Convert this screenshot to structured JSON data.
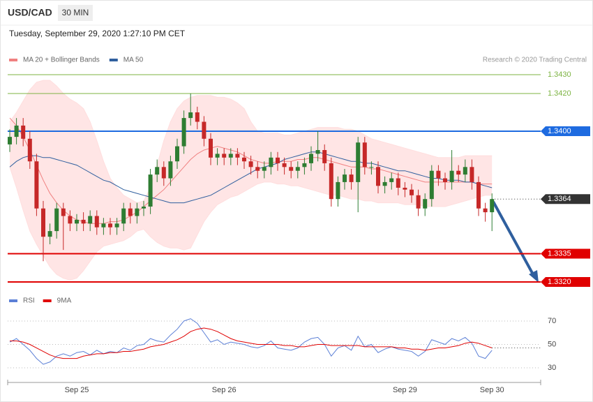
{
  "chart_data": [
    {
      "type": "candlestick",
      "title": "USD/CAD",
      "timeframe": "30 MIN",
      "subtitle": "Tuesday, September 29, 2020 1:27:10 PM CET",
      "source": "Research © 2020 Trading Central",
      "up_color": "#2e7d32",
      "down_color": "#c62828",
      "categories": [
        null,
        null,
        null,
        null,
        null,
        null,
        null,
        null,
        null,
        null,
        "Sep 25",
        null,
        null,
        null,
        null,
        null,
        null,
        null,
        null,
        null,
        null,
        null,
        null,
        null,
        null,
        null,
        null,
        null,
        null,
        null,
        null,
        null,
        "Sep 26",
        null,
        null,
        null,
        null,
        null,
        null,
        null,
        null,
        null,
        null,
        null,
        null,
        null,
        null,
        null,
        null,
        null,
        null,
        null,
        null,
        null,
        null,
        null,
        null,
        null,
        null,
        "Sep 29",
        null,
        null,
        null,
        null,
        null,
        null,
        null,
        null,
        null,
        null,
        null,
        null,
        "Sep 30"
      ],
      "open": [
        1.3393,
        1.3397,
        1.3403,
        1.3396,
        1.3384,
        1.3359,
        1.3344,
        1.3347,
        1.3359,
        1.3355,
        1.3351,
        1.3353,
        1.3351,
        1.3355,
        1.3349,
        1.3351,
        1.3349,
        1.3351,
        1.3359,
        1.3355,
        1.3359,
        1.336,
        1.3377,
        1.3381,
        1.3375,
        1.3384,
        1.3392,
        1.3407,
        1.341,
        1.3405,
        1.3396,
        1.3386,
        1.3388,
        1.3386,
        1.3388,
        1.3386,
        1.3384,
        1.3381,
        1.3379,
        1.3381,
        1.3386,
        1.3383,
        1.3381,
        1.3379,
        1.3381,
        1.3383,
        1.3388,
        1.339,
        1.3383,
        1.3364,
        1.3373,
        1.3377,
        1.3373,
        1.3394,
        1.3381,
        1.3381,
        1.3371,
        1.3373,
        1.3375,
        1.337,
        1.3369,
        1.3366,
        1.3359,
        1.3364,
        1.3379,
        1.3375,
        1.3373,
        1.3379,
        1.3377,
        1.3381,
        1.3373,
        1.3359,
        1.3357
      ],
      "high": [
        1.3401,
        1.3407,
        1.3407,
        1.34,
        1.3388,
        1.3363,
        1.3351,
        1.3362,
        1.3362,
        1.3358,
        1.3356,
        1.3357,
        1.3358,
        1.3358,
        1.3354,
        1.3354,
        1.3354,
        1.3362,
        1.3362,
        1.3362,
        1.3363,
        1.338,
        1.3385,
        1.3384,
        1.3387,
        1.3396,
        1.3411,
        1.342,
        1.3413,
        1.3408,
        1.3399,
        1.3391,
        1.3391,
        1.3391,
        1.3391,
        1.3389,
        1.3387,
        1.3384,
        1.3384,
        1.3389,
        1.3389,
        1.3386,
        1.3384,
        1.3384,
        1.3386,
        1.3392,
        1.34,
        1.3393,
        1.3386,
        1.3376,
        1.338,
        1.338,
        1.3397,
        1.3397,
        1.3384,
        1.3384,
        1.3376,
        1.3378,
        1.3378,
        1.3373,
        1.3372,
        1.3369,
        1.3367,
        1.3382,
        1.3382,
        1.3378,
        1.339,
        1.3382,
        1.3385,
        1.3385,
        1.3376,
        1.3362,
        1.3367
      ],
      "low": [
        1.3389,
        1.3393,
        1.3392,
        1.338,
        1.3355,
        1.3331,
        1.334,
        1.3343,
        1.3337,
        1.3347,
        1.3347,
        1.3347,
        1.3347,
        1.3345,
        1.3345,
        1.3345,
        1.3345,
        1.3347,
        1.3351,
        1.3351,
        1.3355,
        1.3356,
        1.3373,
        1.3371,
        1.3371,
        1.338,
        1.3388,
        1.3403,
        1.3401,
        1.3392,
        1.3382,
        1.3382,
        1.3382,
        1.3382,
        1.3382,
        1.338,
        1.3377,
        1.3375,
        1.3375,
        1.3377,
        1.3379,
        1.3377,
        1.3375,
        1.3375,
        1.3377,
        1.3379,
        1.3384,
        1.3379,
        1.336,
        1.336,
        1.3369,
        1.3369,
        1.3357,
        1.3377,
        1.3377,
        1.3367,
        1.3367,
        1.3369,
        1.3366,
        1.3365,
        1.3362,
        1.3355,
        1.3355,
        1.336,
        1.3371,
        1.3369,
        1.3369,
        1.3373,
        1.3373,
        1.3369,
        1.3355,
        1.3352,
        1.3347
      ],
      "close": [
        1.3397,
        1.3403,
        1.3396,
        1.3384,
        1.3359,
        1.3344,
        1.3347,
        1.3359,
        1.3355,
        1.3351,
        1.3353,
        1.3351,
        1.3355,
        1.3349,
        1.3351,
        1.3349,
        1.3351,
        1.3359,
        1.3355,
        1.3359,
        1.336,
        1.3377,
        1.3381,
        1.3375,
        1.3384,
        1.3392,
        1.3407,
        1.341,
        1.3405,
        1.3396,
        1.3386,
        1.3388,
        1.3386,
        1.3388,
        1.3386,
        1.3384,
        1.3381,
        1.3379,
        1.3381,
        1.3386,
        1.3383,
        1.3381,
        1.3379,
        1.3381,
        1.3383,
        1.3388,
        1.339,
        1.3383,
        1.3364,
        1.3373,
        1.3377,
        1.3373,
        1.3394,
        1.3381,
        1.3381,
        1.3371,
        1.3373,
        1.3375,
        1.337,
        1.3369,
        1.3366,
        1.3359,
        1.3364,
        1.3379,
        1.3375,
        1.3373,
        1.3379,
        1.3377,
        1.3381,
        1.3373,
        1.3359,
        1.3357,
        1.3364
      ],
      "overlays": [
        {
          "name": "MA 20 + Bollinger Bands",
          "color": "#f08080",
          "band_color": "#ffdede",
          "values": [
            1.3407,
            1.3403,
            1.3397,
            1.339,
            1.3382,
            1.3374,
            1.3367,
            1.3362,
            1.3358,
            1.3355,
            1.3353,
            1.3352,
            1.3351,
            1.3351,
            1.3351,
            1.3352,
            1.3352,
            1.3353,
            1.3355,
            1.3357,
            1.336,
            1.3363,
            1.3366,
            1.3369,
            1.3373,
            1.3377,
            1.3381,
            1.3385,
            1.3388,
            1.339,
            1.3391,
            1.3392,
            1.3391,
            1.339,
            1.3389,
            1.3387,
            1.3385,
            1.3384,
            1.3383,
            1.3383,
            1.3384,
            1.3384,
            1.3384,
            1.3385,
            1.3385,
            1.3386,
            1.3386,
            1.3385,
            1.3384,
            1.3383,
            1.3382,
            1.3381,
            1.3381,
            1.3381,
            1.338,
            1.338,
            1.3379,
            1.3378,
            1.3377,
            1.3376,
            1.3375,
            1.3374,
            1.3373,
            1.3373,
            1.3373,
            1.3373,
            1.3373,
            1.3373,
            1.3373,
            1.3373,
            1.3372,
            1.3372,
            1.3372
          ],
          "upper": [
            1.3405,
            1.341,
            1.3416,
            1.3422,
            1.3426,
            1.3427,
            1.3427,
            1.3424,
            1.342,
            1.3417,
            1.3415,
            1.3412,
            1.3405,
            1.3395,
            1.3384,
            1.3375,
            1.337,
            1.3366,
            1.3364,
            1.3362,
            1.3363,
            1.337,
            1.3382,
            1.3395,
            1.3405,
            1.3412,
            1.3416,
            1.3418,
            1.3419,
            1.3419,
            1.3419,
            1.3418,
            1.3418,
            1.3417,
            1.3415,
            1.3412,
            1.3405,
            1.34,
            1.3399,
            1.3399,
            1.3399,
            1.3398,
            1.3398,
            1.3399,
            1.34,
            1.3401,
            1.3402,
            1.3402,
            1.3402,
            1.3402,
            1.3401,
            1.3401,
            1.34,
            1.3398,
            1.3396,
            1.3395,
            1.3394,
            1.3393,
            1.3392,
            1.3391,
            1.339,
            1.3389,
            1.3388,
            1.3387,
            1.3386,
            1.3386,
            1.3386,
            1.3386,
            1.3387,
            1.3387,
            1.3387,
            1.3387,
            1.3387
          ],
          "lower": [
            1.3381,
            1.337,
            1.3358,
            1.3347,
            1.334,
            1.3334,
            1.3328,
            1.3324,
            1.3322,
            1.3321,
            1.3322,
            1.3326,
            1.3331,
            1.3336,
            1.3339,
            1.334,
            1.3341,
            1.3342,
            1.3344,
            1.3347,
            1.3348,
            1.3344,
            1.3341,
            1.3339,
            1.3338,
            1.3338,
            1.3337,
            1.3338,
            1.3345,
            1.3352,
            1.3357,
            1.3361,
            1.3363,
            1.3365,
            1.3366,
            1.3368,
            1.337,
            1.3372,
            1.3373,
            1.3373,
            1.3372,
            1.3372,
            1.3371,
            1.3371,
            1.337,
            1.3369,
            1.3368,
            1.3367,
            1.3366,
            1.3366,
            1.3365,
            1.3364,
            1.3364,
            1.3363,
            1.3363,
            1.3362,
            1.3362,
            1.3362,
            1.3362,
            1.3361,
            1.3361,
            1.3361,
            1.336,
            1.336,
            1.336,
            1.336,
            1.3361,
            1.3362,
            1.3363,
            1.3364,
            1.3365,
            1.3366,
            1.3366
          ]
        },
        {
          "name": "MA 50",
          "color": "#2f5f9e",
          "values": [
            1.3381,
            1.3384,
            1.3386,
            1.3387,
            1.3387,
            1.3386,
            1.3386,
            1.3385,
            1.3384,
            1.3383,
            1.3382,
            1.338,
            1.3378,
            1.3376,
            1.3374,
            1.3373,
            1.3371,
            1.3369,
            1.3368,
            1.3367,
            1.3366,
            1.3365,
            1.3364,
            1.3363,
            1.3362,
            1.3362,
            1.3362,
            1.3363,
            1.3364,
            1.3365,
            1.3366,
            1.3368,
            1.337,
            1.3372,
            1.3374,
            1.3376,
            1.3378,
            1.338,
            1.3381,
            1.3382,
            1.3383,
            1.3385,
            1.3386,
            1.3387,
            1.3388,
            1.3389,
            1.3389,
            1.3388,
            1.3387,
            1.3386,
            1.3385,
            1.3384,
            1.3384,
            1.3383,
            1.3383,
            1.3382,
            1.3381,
            1.338,
            1.3379,
            1.3379,
            1.3378,
            1.3377,
            1.3376,
            1.3375,
            1.3375,
            1.3374,
            1.3374,
            1.3374,
            1.3373,
            1.3373,
            1.3372,
            1.3371,
            1.337
          ]
        }
      ],
      "ylim": [
        1.3318,
        1.3435
      ],
      "levels": [
        {
          "value": 1.343,
          "label": "1.3430",
          "color": "#7cb342",
          "style": "solid",
          "tag": false
        },
        {
          "value": 1.342,
          "label": "1.3420",
          "color": "#7cb342",
          "style": "solid",
          "tag": false
        },
        {
          "value": 1.34,
          "label": "1.3400",
          "color": "#1e6be0",
          "style": "solid",
          "tag": true
        },
        {
          "value": 1.3364,
          "label": "1.3364",
          "color": "#333333",
          "style": "dotted",
          "tag": true
        },
        {
          "value": 1.3335,
          "label": "1.3335",
          "color": "#e00000",
          "style": "solid",
          "tag": true
        },
        {
          "value": 1.332,
          "label": "1.3320",
          "color": "#e00000",
          "style": "solid",
          "tag": true
        }
      ]
    },
    {
      "type": "line",
      "series": [
        {
          "name": "RSI",
          "color": "#5b7fd6",
          "values": [
            52,
            55,
            50,
            45,
            38,
            33,
            35,
            40,
            42,
            40,
            43,
            44,
            41,
            45,
            42,
            44,
            43,
            47,
            45,
            49,
            50,
            55,
            53,
            52,
            58,
            63,
            70,
            72,
            68,
            60,
            52,
            54,
            50,
            52,
            51,
            50,
            48,
            47,
            49,
            53,
            47,
            46,
            45,
            47,
            52,
            55,
            56,
            50,
            40,
            47,
            49,
            45,
            57,
            48,
            50,
            43,
            46,
            48,
            46,
            45,
            44,
            40,
            44,
            54,
            52,
            50,
            55,
            53,
            56,
            51,
            40,
            38,
            45
          ]
        },
        {
          "name": "9MA",
          "color": "#e00000",
          "values": [
            53,
            53,
            52,
            50,
            47,
            44,
            41,
            39,
            38,
            38,
            38,
            40,
            41,
            42,
            42,
            43,
            43,
            44,
            44,
            45,
            46,
            48,
            49,
            50,
            52,
            54,
            57,
            61,
            63,
            64,
            63,
            61,
            58,
            55,
            53,
            52,
            51,
            50,
            50,
            50,
            50,
            49,
            49,
            48,
            48,
            49,
            50,
            50,
            49,
            49,
            49,
            49,
            49,
            48,
            48,
            48,
            48,
            48,
            47,
            47,
            46,
            46,
            45,
            46,
            47,
            47,
            48,
            49,
            51,
            52,
            51,
            49,
            47
          ]
        }
      ],
      "ylim": [
        25,
        75
      ],
      "yticks": [
        30,
        50,
        70
      ]
    }
  ]
}
